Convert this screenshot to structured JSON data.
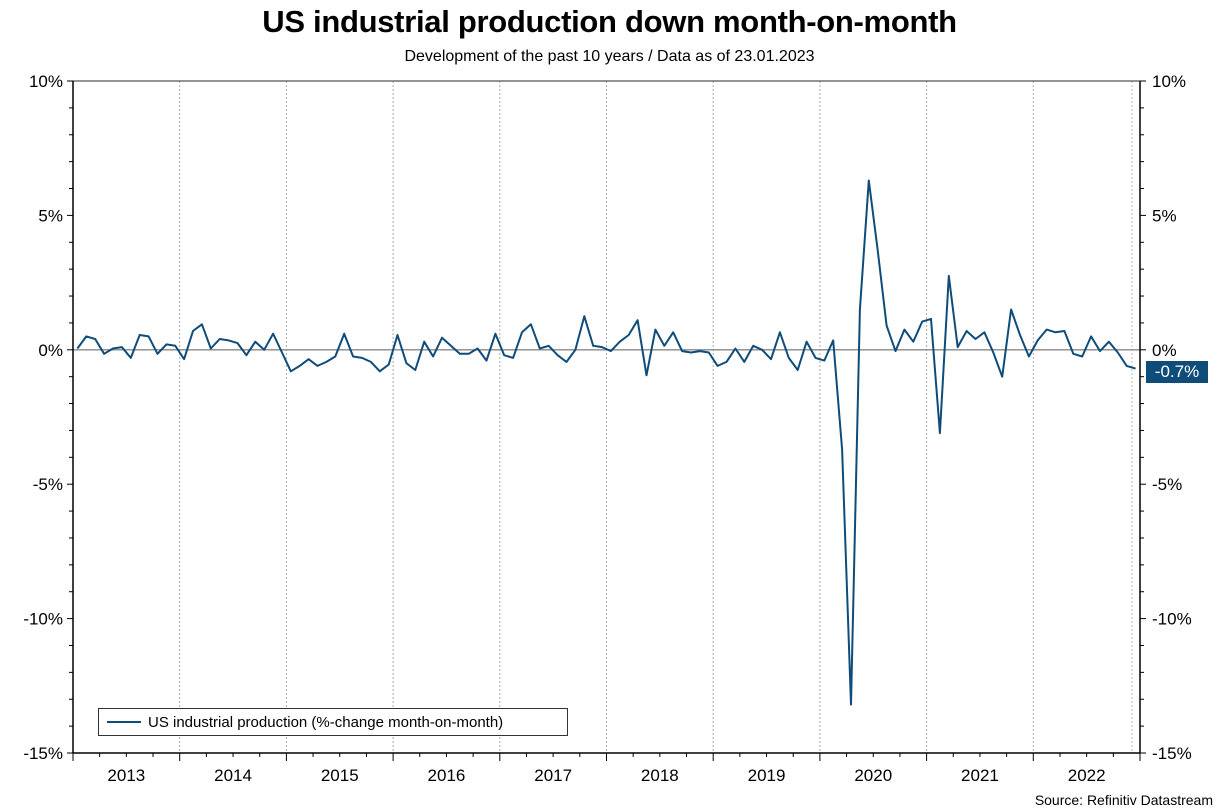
{
  "chart_data": {
    "type": "line",
    "title": "US industrial production down month-on-month",
    "subtitle": "Development of the past 10 years / Data as of 23.01.2023",
    "source": "Source: Refinitiv Datastream",
    "xlabel": "",
    "ylabel": "",
    "ylim": [
      -15,
      10
    ],
    "yticks": [
      10,
      5,
      0,
      -5,
      -10,
      -15
    ],
    "ytick_labels": [
      "10%",
      "5%",
      "0%",
      "-5%",
      "-10%",
      "-15%"
    ],
    "x_categories": [
      "2013",
      "2014",
      "2015",
      "2016",
      "2017",
      "2018",
      "2019",
      "2020",
      "2021",
      "2022"
    ],
    "x_start": "2013-01",
    "x_end": "2022-12",
    "frequency": "monthly",
    "grid": "vertical dotted at year boundaries",
    "legend_position": "bottom-left",
    "last_value_label": "-0.7%",
    "series": [
      {
        "name": "US industrial production (%-change month-on-month)",
        "color": "#0f4c7a",
        "values": [
          0.05,
          0.5,
          0.4,
          -0.15,
          0.05,
          0.1,
          -0.3,
          0.55,
          0.5,
          -0.15,
          0.2,
          0.15,
          -0.35,
          0.7,
          0.95,
          0.05,
          0.4,
          0.35,
          0.25,
          -0.2,
          0.3,
          0.0,
          0.6,
          -0.1,
          -0.8,
          -0.6,
          -0.35,
          -0.6,
          -0.45,
          -0.25,
          0.6,
          -0.25,
          -0.3,
          -0.45,
          -0.8,
          -0.55,
          0.55,
          -0.5,
          -0.75,
          0.3,
          -0.25,
          0.45,
          0.15,
          -0.15,
          -0.15,
          0.05,
          -0.4,
          0.6,
          -0.2,
          -0.3,
          0.65,
          0.95,
          0.05,
          0.15,
          -0.2,
          -0.45,
          0.0,
          1.25,
          0.15,
          0.1,
          -0.05,
          0.3,
          0.55,
          1.1,
          -0.95,
          0.75,
          0.15,
          0.65,
          -0.05,
          -0.1,
          -0.05,
          -0.1,
          -0.6,
          -0.45,
          0.05,
          -0.45,
          0.15,
          0.0,
          -0.35,
          0.65,
          -0.3,
          -0.75,
          0.3,
          -0.3,
          -0.4,
          0.35,
          -3.7,
          -13.2,
          1.5,
          6.3,
          3.7,
          0.9,
          -0.05,
          0.75,
          0.3,
          1.05,
          1.15,
          -3.1,
          2.75,
          0.1,
          0.7,
          0.4,
          0.65,
          -0.1,
          -1.0,
          1.5,
          0.55,
          -0.25,
          0.35,
          0.75,
          0.65,
          0.7,
          -0.15,
          -0.25,
          0.5,
          -0.05,
          0.3,
          -0.1,
          -0.6,
          -0.7
        ]
      }
    ]
  }
}
